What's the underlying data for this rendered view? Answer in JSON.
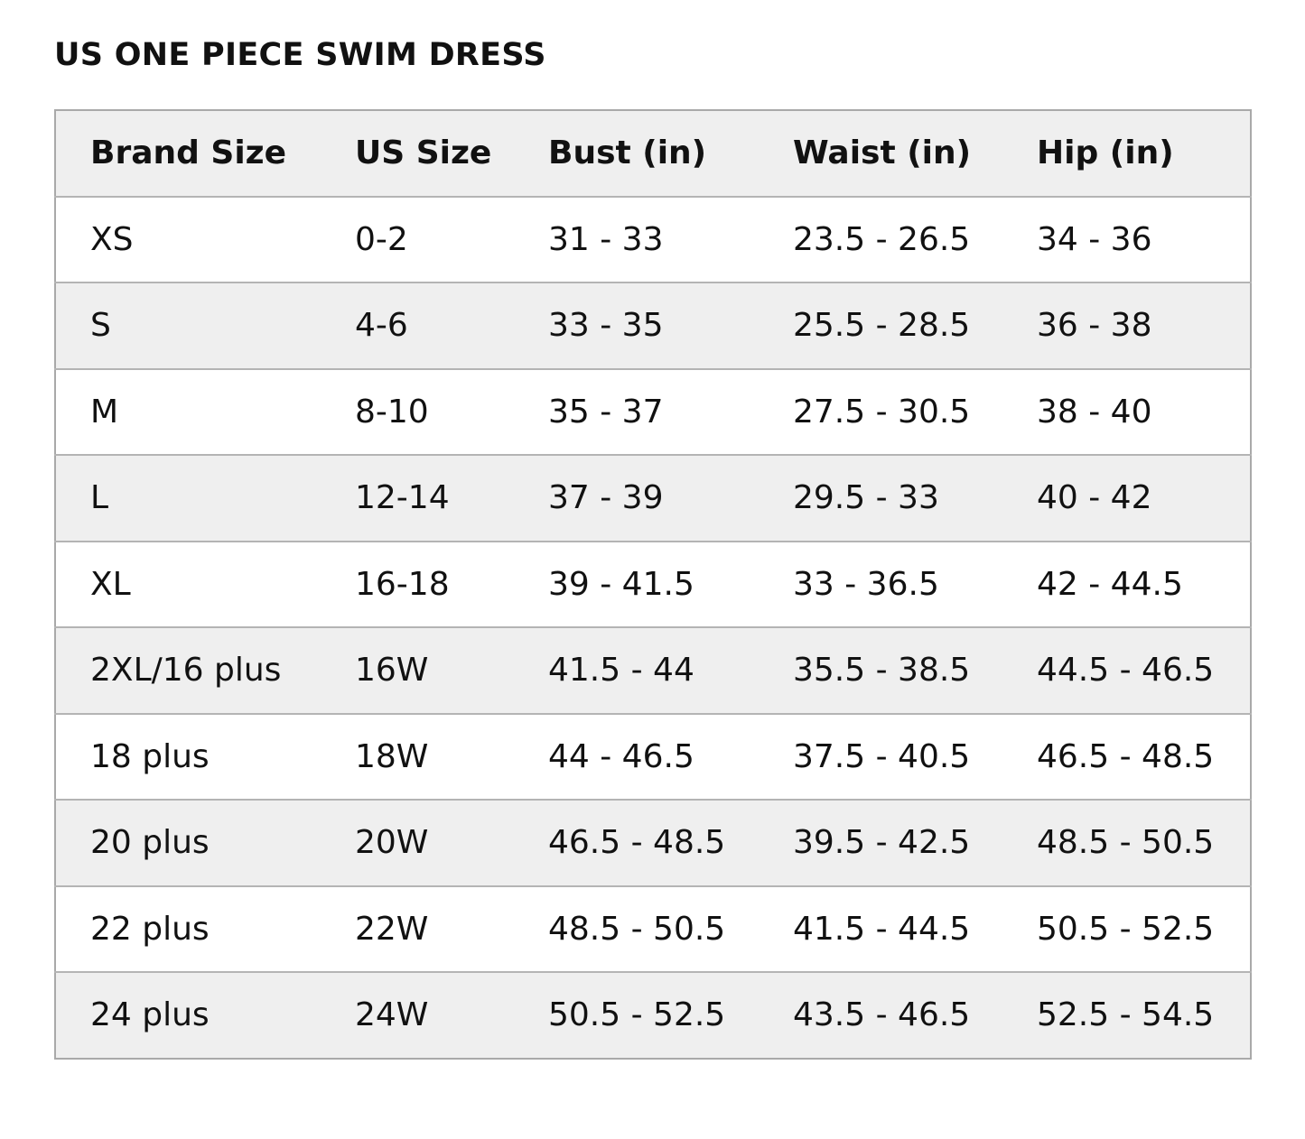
{
  "title": "US ONE PIECE SWIM DRESS",
  "table": {
    "headers": [
      "Brand Size",
      "US Size",
      "Bust (in)",
      "Waist (in)",
      "Hip (in)"
    ],
    "rows": [
      [
        "XS",
        "0-2",
        "31 - 33",
        "23.5 - 26.5",
        "34 - 36"
      ],
      [
        "S",
        "4-6",
        "33 - 35",
        "25.5 - 28.5",
        "36 - 38"
      ],
      [
        "M",
        "8-10",
        "35 - 37",
        "27.5 - 30.5",
        "38 - 40"
      ],
      [
        "L",
        "12-14",
        "37 - 39",
        "29.5 - 33",
        "40 - 42"
      ],
      [
        "XL",
        "16-18",
        "39 - 41.5",
        "33 - 36.5",
        "42 - 44.5"
      ],
      [
        "2XL/16 plus",
        "16W",
        "41.5 - 44",
        "35.5 - 38.5",
        "44.5 - 46.5"
      ],
      [
        "18 plus",
        "18W",
        "44 - 46.5",
        "37.5 - 40.5",
        "46.5 - 48.5"
      ],
      [
        "20 plus",
        "20W",
        "46.5 - 48.5",
        "39.5 - 42.5",
        "48.5 - 50.5"
      ],
      [
        "22 plus",
        "22W",
        "48.5 - 50.5",
        "41.5 - 44.5",
        "50.5 - 52.5"
      ],
      [
        "24 plus",
        "24W",
        "50.5 - 52.5",
        "43.5 - 46.5",
        "52.5 - 54.5"
      ]
    ]
  },
  "colors": {
    "text": "#111111",
    "shaded_row": "#efefef",
    "plain_row": "#ffffff",
    "border": "#a9a9a9"
  }
}
